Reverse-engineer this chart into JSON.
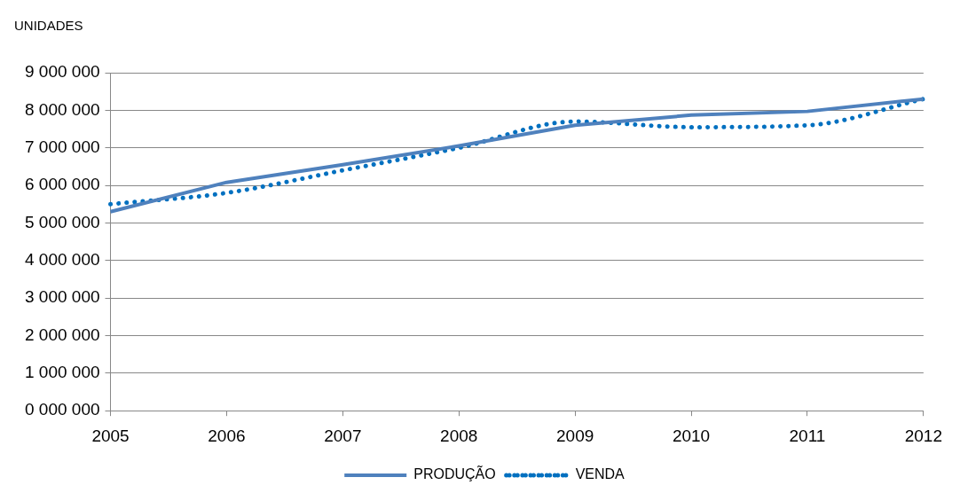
{
  "chart_data": {
    "type": "line",
    "ylabel": "UNIDADES",
    "x": [
      2005,
      2006,
      2007,
      2008,
      2009,
      2010,
      2011,
      2012
    ],
    "series": [
      {
        "name": "PRODUÇÃO",
        "color": "#4f81bd",
        "line_style": "solid",
        "values": [
          5300000,
          6080000,
          6550000,
          7050000,
          7600000,
          7870000,
          7970000,
          8300000
        ]
      },
      {
        "name": "VENDA",
        "color": "#0070c0",
        "line_style": "dotted",
        "values": [
          5500000,
          5800000,
          6400000,
          7000000,
          7700000,
          7550000,
          7600000,
          8300000
        ]
      }
    ],
    "xlim": [
      2005,
      2012
    ],
    "xticks": [
      2005,
      2006,
      2007,
      2008,
      2009,
      2010,
      2011,
      2012
    ],
    "ylim": [
      0,
      9000000
    ],
    "yticks": [
      {
        "value": 0,
        "label": "0 000 000"
      },
      {
        "value": 1000000,
        "label": "1 000 000"
      },
      {
        "value": 2000000,
        "label": "2 000 000"
      },
      {
        "value": 3000000,
        "label": "3 000 000"
      },
      {
        "value": 4000000,
        "label": "4 000 000"
      },
      {
        "value": 5000000,
        "label": "5 000 000"
      },
      {
        "value": 6000000,
        "label": "6 000 000"
      },
      {
        "value": 7000000,
        "label": "7 000 000"
      },
      {
        "value": 8000000,
        "label": "8 000 000"
      },
      {
        "value": 9000000,
        "label": "9 000 000"
      }
    ],
    "grid": "y",
    "legend": "bottom",
    "marker": "none"
  }
}
